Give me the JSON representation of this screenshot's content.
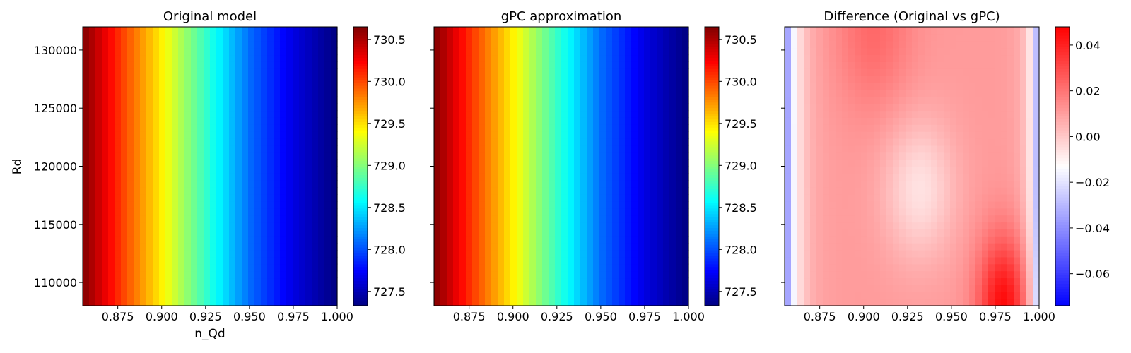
{
  "chart_data": [
    {
      "type": "heatmap",
      "title": "Original model",
      "xlabel": "n_Qd",
      "ylabel": "Rd",
      "xlim": [
        0.855,
        1.0
      ],
      "ylim": [
        108000,
        132000
      ],
      "xticks": [
        "0.875",
        "0.900",
        "0.925",
        "0.950",
        "0.975",
        "1.000"
      ],
      "yticks": [
        "110000",
        "115000",
        "120000",
        "125000",
        "130000"
      ],
      "colormap": "jet",
      "colorbar": {
        "range": [
          727.33,
          730.65
        ],
        "ticks": [
          "727.5",
          "728.0",
          "728.5",
          "729.0",
          "729.5",
          "730.0",
          "730.5"
        ]
      },
      "field": {
        "description": "value varies along n_Qd only",
        "x": [
          0.855,
          0.875,
          0.9,
          0.925,
          0.95,
          0.975,
          1.0
        ],
        "values": [
          730.65,
          730.1,
          729.45,
          728.75,
          728.1,
          727.65,
          727.33
        ]
      }
    },
    {
      "type": "heatmap",
      "title": "gPC approximation",
      "xlabel": "",
      "ylabel": "",
      "xlim": [
        0.855,
        1.0
      ],
      "ylim": [
        108000,
        132000
      ],
      "xticks": [
        "0.875",
        "0.900",
        "0.925",
        "0.950",
        "0.975",
        "1.000"
      ],
      "yticks": [
        "",
        "",
        "",
        "",
        ""
      ],
      "colormap": "jet",
      "colorbar": {
        "range": [
          727.33,
          730.65
        ],
        "ticks": [
          "727.5",
          "728.0",
          "728.5",
          "729.0",
          "729.5",
          "730.0",
          "730.5"
        ]
      },
      "field": {
        "description": "value varies along n_Qd only",
        "x": [
          0.855,
          0.875,
          0.9,
          0.925,
          0.95,
          0.975,
          1.0
        ],
        "values": [
          730.65,
          730.1,
          729.45,
          728.75,
          728.1,
          727.65,
          727.33
        ]
      }
    },
    {
      "type": "heatmap",
      "title": "Difference (Original vs gPC)",
      "xlabel": "",
      "ylabel": "",
      "xlim": [
        0.855,
        1.0
      ],
      "ylim": [
        108000,
        132000
      ],
      "xticks": [
        "0.875",
        "0.900",
        "0.925",
        "0.950",
        "0.975",
        "1.000"
      ],
      "yticks": [
        "",
        "",
        "",
        "",
        ""
      ],
      "colormap": "bwr",
      "colorbar": {
        "range": [
          -0.074,
          0.048
        ],
        "ticks": [
          "−0.06",
          "−0.04",
          "−0.02",
          "0.00",
          "0.02",
          "0.04"
        ]
      },
      "field": {
        "description": "negative at left edge and near n_Qd≈0.93, Rd≈118000; positive elsewhere, max near n_Qd≈0.98, Rd≈108000",
        "min": -0.074,
        "max": 0.048
      }
    }
  ]
}
